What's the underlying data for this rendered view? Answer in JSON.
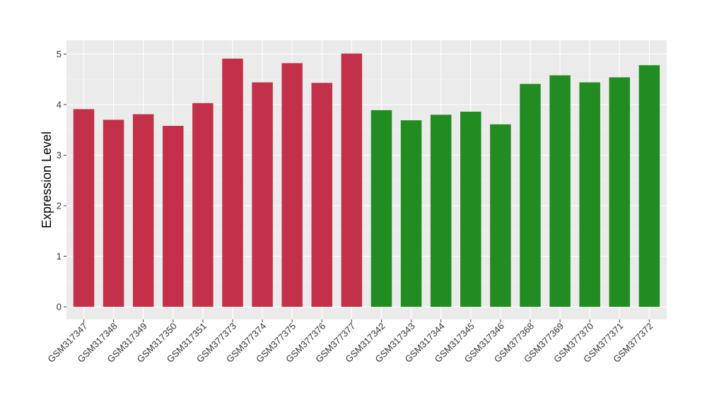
{
  "chart_data": {
    "type": "bar",
    "title": "",
    "xlabel": "",
    "ylabel": "Expression Level",
    "ylim": [
      0,
      5.2
    ],
    "yticks": [
      0,
      1,
      2,
      3,
      4,
      5
    ],
    "grid": true,
    "legend": "none",
    "categories": [
      "GSM317347",
      "GSM317348",
      "GSM317349",
      "GSM317350",
      "GSM317351",
      "GSM377373",
      "GSM377374",
      "GSM377375",
      "GSM377376",
      "GSM377377",
      "GSM317342",
      "GSM317343",
      "GSM317344",
      "GSM317345",
      "GSM317346",
      "GSM377368",
      "GSM377369",
      "GSM377370",
      "GSM377371",
      "GSM377372"
    ],
    "values": [
      3.91,
      3.7,
      3.81,
      3.58,
      4.03,
      4.91,
      4.44,
      4.82,
      4.43,
      5.01,
      3.89,
      3.69,
      3.8,
      3.86,
      3.61,
      4.41,
      4.58,
      4.44,
      4.54,
      4.78
    ],
    "bar_colors": [
      "#C3304A",
      "#C3304A",
      "#C3304A",
      "#C3304A",
      "#C3304A",
      "#C3304A",
      "#C3304A",
      "#C3304A",
      "#C3304A",
      "#C3304A",
      "#228B22",
      "#228B22",
      "#228B22",
      "#228B22",
      "#228B22",
      "#228B22",
      "#228B22",
      "#228B22",
      "#228B22",
      "#228B22"
    ]
  },
  "colors": {
    "panel_background": "#EBEBEB",
    "grid_major": "#FFFFFF",
    "grid_minor": "#F5F5F5",
    "tick_color": "#333333"
  }
}
